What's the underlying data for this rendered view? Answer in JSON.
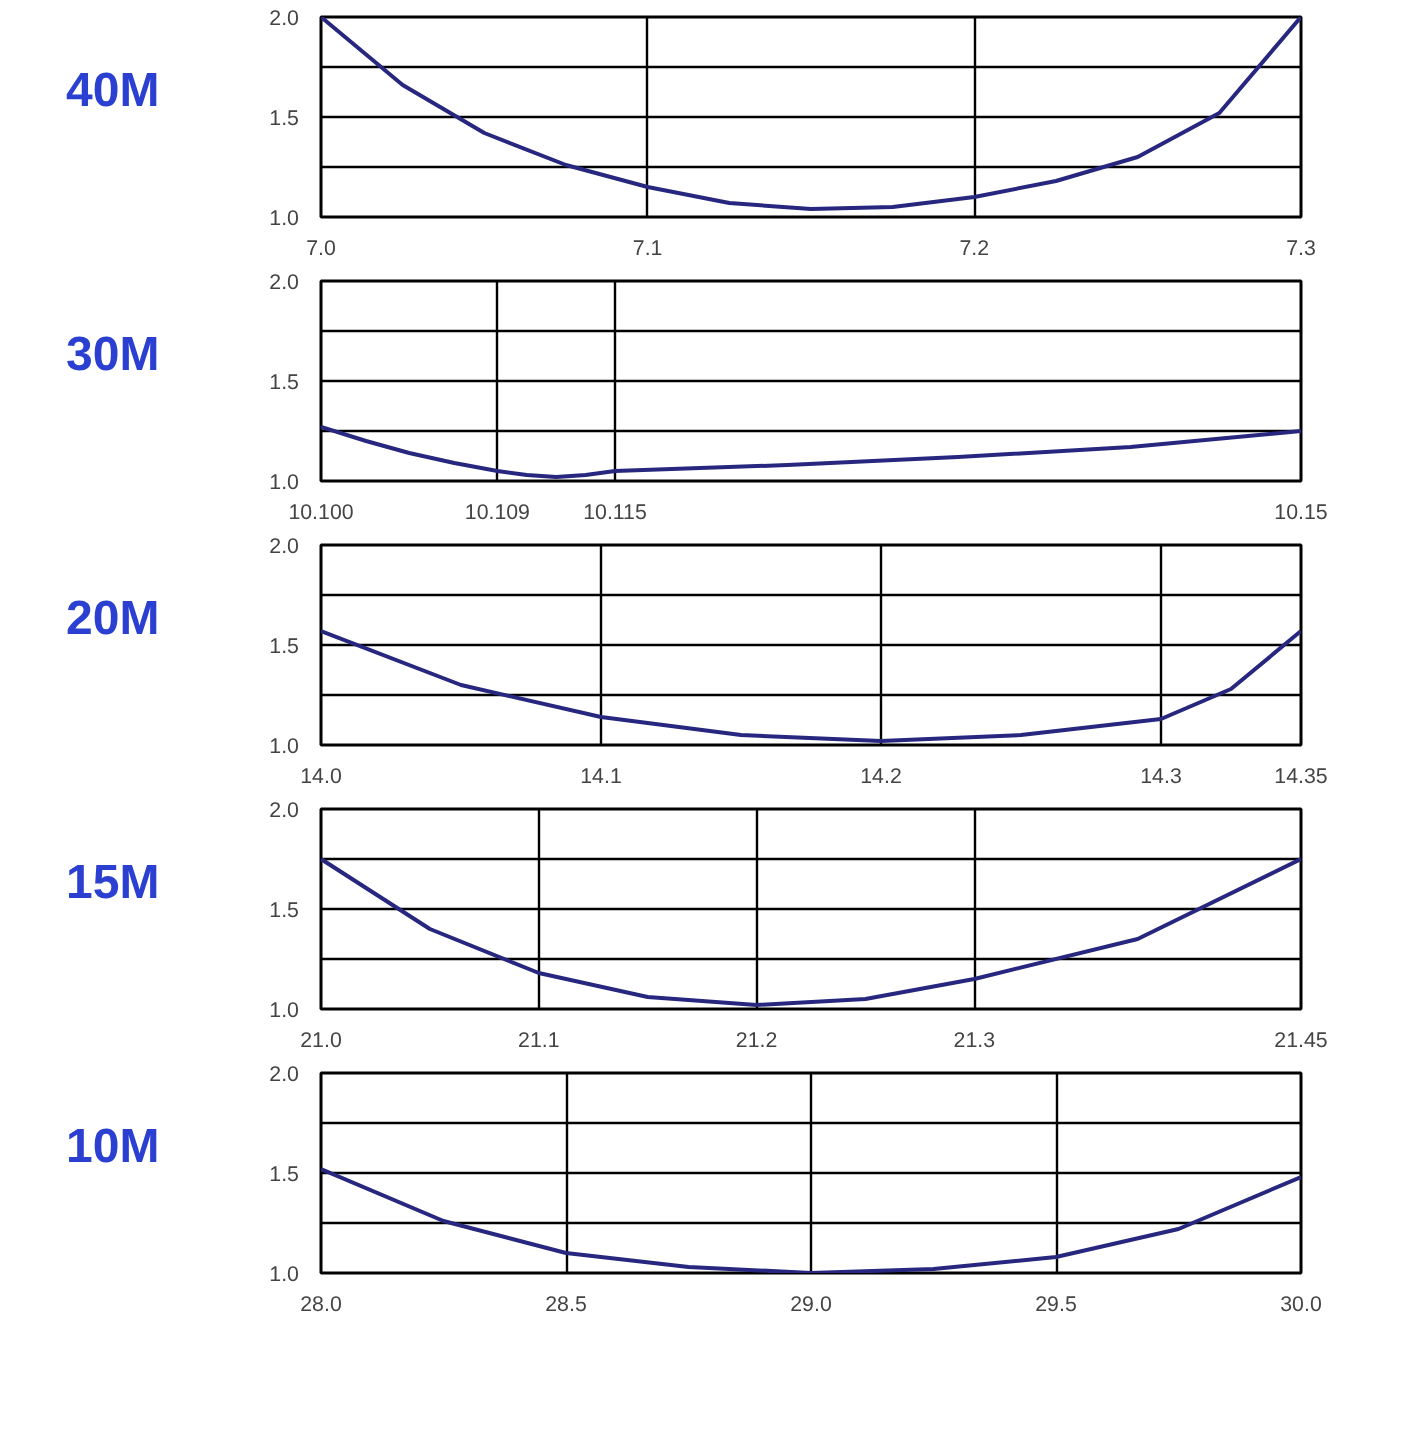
{
  "chart_data": [
    {
      "type": "line",
      "title": "40M",
      "xlim": [
        7.0,
        7.3
      ],
      "xticks": [
        {
          "value": 7.0,
          "label": "7.0"
        },
        7.1,
        7.2,
        7.3
      ],
      "ylim": [
        1.0,
        2.0
      ],
      "yticks": [
        {
          "value": 1.0,
          "label": "1.0"
        },
        {
          "value": 1.25,
          "label": null
        },
        {
          "value": 1.5,
          "label": "1.5"
        },
        {
          "value": 1.75,
          "label": null
        },
        {
          "value": 2.0,
          "label": "2.0"
        }
      ],
      "grid": true,
      "series": [
        {
          "color": "#27277f",
          "x": [
            7.0,
            7.025,
            7.05,
            7.075,
            7.1,
            7.125,
            7.15,
            7.175,
            7.2,
            7.225,
            7.25,
            7.275,
            7.3
          ],
          "values": [
            2.0,
            1.66,
            1.42,
            1.26,
            1.15,
            1.07,
            1.04,
            1.05,
            1.1,
            1.18,
            1.3,
            1.52,
            2.0
          ]
        }
      ]
    },
    {
      "type": "line",
      "title": "30M",
      "xlim": [
        10.1,
        10.15
      ],
      "xticks": [
        {
          "value": 10.1,
          "label": "10.100"
        },
        10.109,
        10.115,
        10.15
      ],
      "ylim": [
        1.0,
        2.0
      ],
      "yticks": [
        {
          "value": 1.0,
          "label": "1.0"
        },
        {
          "value": 1.25,
          "label": null
        },
        {
          "value": 1.5,
          "label": "1.5"
        },
        {
          "value": 1.75,
          "label": null
        },
        {
          "value": 2.0,
          "label": "2.0"
        }
      ],
      "grid": true,
      "series": [
        {
          "color": "#27277f",
          "x": [
            10.1,
            10.1023,
            10.1045,
            10.1068,
            10.109,
            10.1105,
            10.112,
            10.1135,
            10.115,
            10.1238,
            10.1325,
            10.1413,
            10.15
          ],
          "values": [
            1.27,
            1.2,
            1.14,
            1.09,
            1.05,
            1.03,
            1.02,
            1.03,
            1.05,
            1.08,
            1.12,
            1.17,
            1.25
          ]
        }
      ]
    },
    {
      "type": "line",
      "title": "20M",
      "xlim": [
        14.0,
        14.35
      ],
      "xticks": [
        {
          "value": 14.0,
          "label": "14.0"
        },
        14.1,
        14.2,
        14.3,
        14.35
      ],
      "ylim": [
        1.0,
        2.0
      ],
      "yticks": [
        {
          "value": 1.0,
          "label": "1.0"
        },
        {
          "value": 1.25,
          "label": null
        },
        {
          "value": 1.5,
          "label": "1.5"
        },
        {
          "value": 1.75,
          "label": null
        },
        {
          "value": 2.0,
          "label": "2.0"
        }
      ],
      "grid": true,
      "series": [
        {
          "color": "#27277f",
          "x": [
            14.0,
            14.05,
            14.1,
            14.15,
            14.2,
            14.25,
            14.3,
            14.325,
            14.35
          ],
          "values": [
            1.57,
            1.3,
            1.14,
            1.05,
            1.02,
            1.05,
            1.13,
            1.28,
            1.57
          ]
        }
      ]
    },
    {
      "type": "line",
      "title": "15M",
      "xlim": [
        21.0,
        21.45
      ],
      "xticks": [
        {
          "value": 21.0,
          "label": "21.0"
        },
        21.1,
        21.2,
        21.3,
        21.45
      ],
      "ylim": [
        1.0,
        2.0
      ],
      "yticks": [
        {
          "value": 1.0,
          "label": "1.0"
        },
        {
          "value": 1.25,
          "label": null
        },
        {
          "value": 1.5,
          "label": "1.5"
        },
        {
          "value": 1.75,
          "label": null
        },
        {
          "value": 2.0,
          "label": "2.0"
        }
      ],
      "grid": true,
      "series": [
        {
          "color": "#27277f",
          "x": [
            21.0,
            21.05,
            21.1,
            21.15,
            21.2,
            21.25,
            21.3,
            21.375,
            21.45
          ],
          "values": [
            1.75,
            1.4,
            1.18,
            1.06,
            1.02,
            1.05,
            1.15,
            1.35,
            1.75
          ]
        }
      ]
    },
    {
      "type": "line",
      "title": "10M",
      "xlim": [
        28.0,
        30.0
      ],
      "xticks": [
        {
          "value": 28.0,
          "label": "28.0"
        },
        28.5,
        {
          "value": 29.0,
          "label": "29.0"
        },
        29.5,
        {
          "value": 30.0,
          "label": "30.0"
        }
      ],
      "ylim": [
        1.0,
        2.0
      ],
      "yticks": [
        {
          "value": 1.0,
          "label": "1.0"
        },
        {
          "value": 1.25,
          "label": null
        },
        {
          "value": 1.5,
          "label": "1.5"
        },
        {
          "value": 1.75,
          "label": null
        },
        {
          "value": 2.0,
          "label": "2.0"
        }
      ],
      "grid": true,
      "series": [
        {
          "color": "#27277f",
          "x": [
            28.0,
            28.25,
            28.5,
            28.75,
            29.0,
            29.25,
            29.5,
            29.75,
            30.0
          ],
          "values": [
            1.52,
            1.26,
            1.1,
            1.03,
            1.0,
            1.02,
            1.08,
            1.22,
            1.48
          ]
        }
      ]
    }
  ]
}
